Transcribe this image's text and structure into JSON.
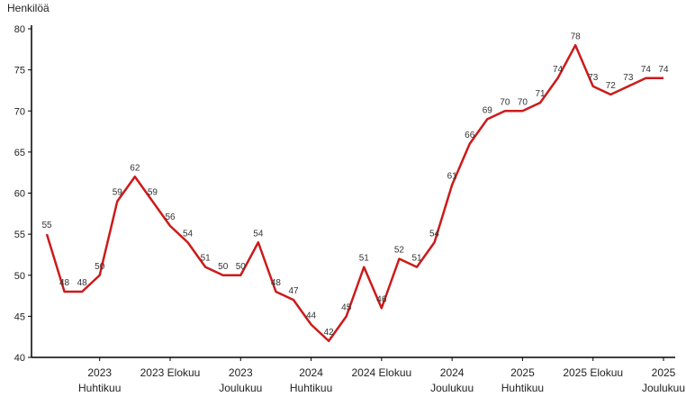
{
  "chart_data": {
    "type": "line",
    "y_label": "Henkilöä",
    "categories": [
      null,
      null,
      null,
      "2023\nHuhtikuu",
      null,
      null,
      null,
      "2023 Elokuu",
      null,
      null,
      null,
      "2023\nJoulukuu",
      null,
      null,
      null,
      "2024\nHuhtikuu",
      null,
      null,
      null,
      "2024 Elokuu",
      null,
      null,
      null,
      "2024\nJoulukuu",
      null,
      null,
      null,
      "2025\nHuhtikuu",
      null,
      null,
      null,
      "2025 Elokuu",
      null,
      null,
      null,
      "2025\nJoulukuu"
    ],
    "series": [
      {
        "color": "#cc1a1a",
        "values": [
          55,
          48,
          48,
          50,
          59,
          62,
          59,
          56,
          54,
          51,
          50,
          50,
          54,
          48,
          47,
          44,
          42,
          45,
          51,
          46,
          52,
          51,
          54,
          61,
          66,
          69,
          70,
          70,
          71,
          74,
          78,
          73,
          72,
          73,
          74,
          74
        ]
      }
    ],
    "ylim": [
      40,
      80
    ],
    "yticks": [
      40,
      45,
      50,
      55,
      60,
      65,
      70,
      75,
      80
    ]
  }
}
